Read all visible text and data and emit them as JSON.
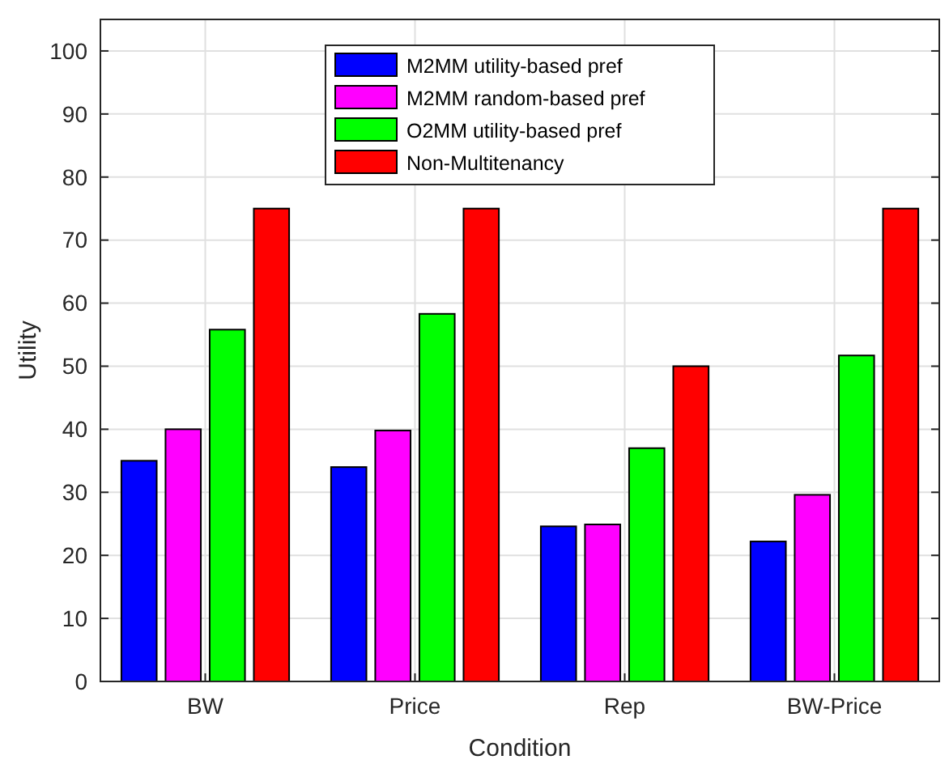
{
  "chart_data": {
    "type": "bar",
    "xlabel": "Condition",
    "ylabel": "Utility",
    "categories": [
      "BW",
      "Price",
      "Rep",
      "BW-Price"
    ],
    "series": [
      {
        "name": "M2MM utility-based pref",
        "color": "#0000ff",
        "values": [
          35,
          34,
          24.6,
          22.2
        ]
      },
      {
        "name": "M2MM random-based pref",
        "color": "#ff00ff",
        "values": [
          40,
          39.8,
          24.9,
          29.6
        ]
      },
      {
        "name": "O2MM utility-based pref",
        "color": "#00ff00",
        "values": [
          55.8,
          58.3,
          37,
          51.7
        ]
      },
      {
        "name": "Non-Multitenancy",
        "color": "#ff0000",
        "values": [
          75,
          75,
          50,
          75
        ]
      }
    ],
    "ylim": [
      0,
      105
    ],
    "yticks": [
      0,
      10,
      20,
      30,
      40,
      50,
      60,
      70,
      80,
      90,
      100
    ],
    "grid": true,
    "legend": "top"
  }
}
